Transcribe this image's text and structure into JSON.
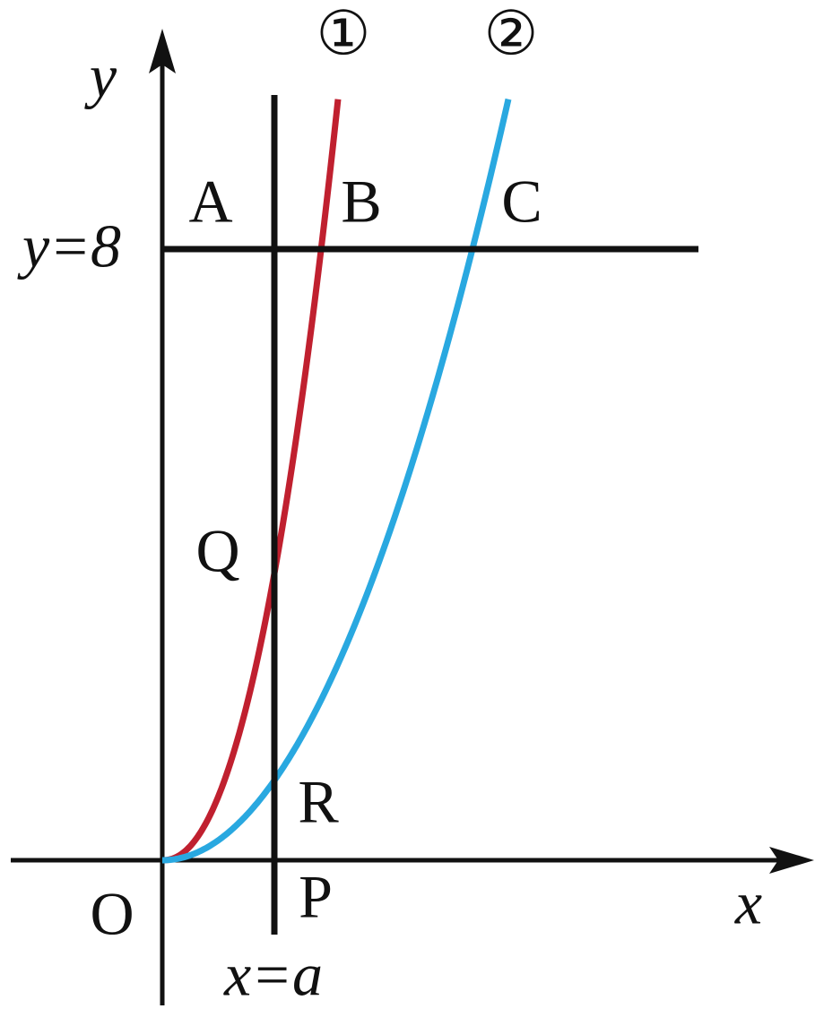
{
  "labels": {
    "y_axis": "y",
    "x_axis": "x",
    "origin": "O",
    "A": "A",
    "B": "B",
    "C": "C",
    "Q": "Q",
    "R": "R",
    "P": "P",
    "curve1": "①",
    "curve2": "②",
    "line_y": "y=8",
    "line_x": "x=a"
  }
}
